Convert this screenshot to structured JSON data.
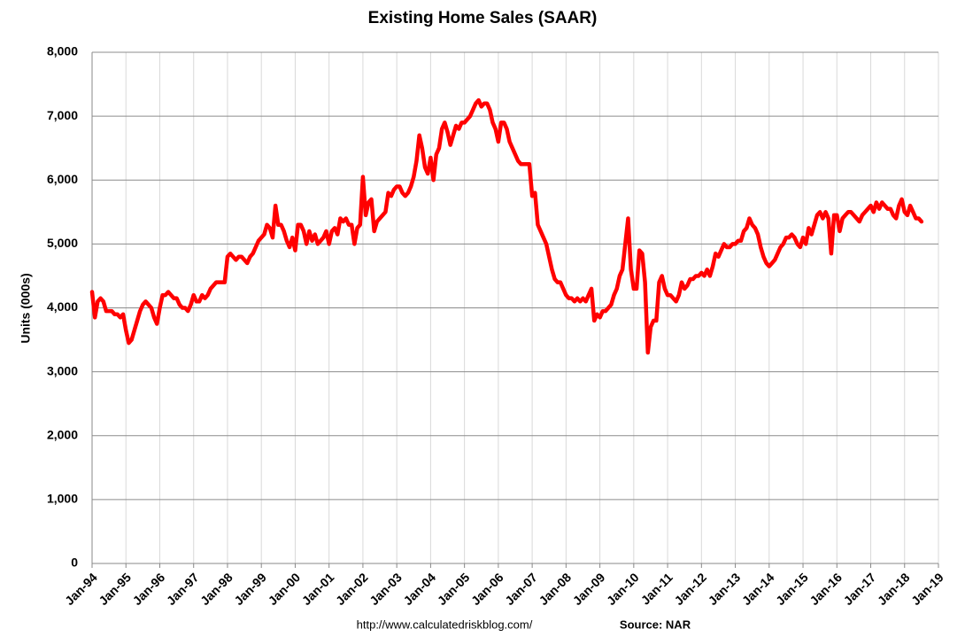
{
  "chart_data": {
    "type": "line",
    "title": "Existing Home Sales (SAAR)",
    "ylabel": "Units (000s)",
    "note": "http://www.calculatedriskblog.com/",
    "source": "Source: NAR",
    "grid": true,
    "xlim": [
      "1994-01",
      "2019-01"
    ],
    "xticks": [
      {
        "value": "1994-01",
        "label": "Jan-94"
      },
      {
        "value": "1995-01",
        "label": "Jan-95"
      },
      {
        "value": "1996-01",
        "label": "Jan-96"
      },
      {
        "value": "1997-01",
        "label": "Jan-97"
      },
      {
        "value": "1998-01",
        "label": "Jan-98"
      },
      {
        "value": "1999-01",
        "label": "Jan-99"
      },
      {
        "value": "2000-01",
        "label": "Jan-00"
      },
      {
        "value": "2001-01",
        "label": "Jan-01"
      },
      {
        "value": "2002-01",
        "label": "Jan-02"
      },
      {
        "value": "2003-01",
        "label": "Jan-03"
      },
      {
        "value": "2004-01",
        "label": "Jan-04"
      },
      {
        "value": "2005-01",
        "label": "Jan-05"
      },
      {
        "value": "2006-01",
        "label": "Jan-06"
      },
      {
        "value": "2007-01",
        "label": "Jan-07"
      },
      {
        "value": "2008-01",
        "label": "Jan-08"
      },
      {
        "value": "2009-01",
        "label": "Jan-09"
      },
      {
        "value": "2010-01",
        "label": "Jan-10"
      },
      {
        "value": "2011-01",
        "label": "Jan-11"
      },
      {
        "value": "2012-01",
        "label": "Jan-12"
      },
      {
        "value": "2013-01",
        "label": "Jan-13"
      },
      {
        "value": "2014-01",
        "label": "Jan-14"
      },
      {
        "value": "2015-01",
        "label": "Jan-15"
      },
      {
        "value": "2016-01",
        "label": "Jan-16"
      },
      {
        "value": "2017-01",
        "label": "Jan-17"
      },
      {
        "value": "2018-01",
        "label": "Jan-18"
      },
      {
        "value": "2019-01",
        "label": "Jan-19"
      }
    ],
    "ylim": [
      0,
      8000
    ],
    "yticks": [
      0,
      {
        "value": 1000,
        "label": "1,000"
      },
      {
        "value": 2000,
        "label": "2,000"
      },
      {
        "value": 3000,
        "label": "3,000"
      },
      {
        "value": 4000,
        "label": "4,000"
      },
      {
        "value": 5000,
        "label": "5,000"
      },
      {
        "value": 6000,
        "label": "6,000"
      },
      {
        "value": 7000,
        "label": "7,000"
      },
      {
        "value": 8000,
        "label": "8,000"
      }
    ],
    "x": [
      "1994-01",
      "1994-02",
      "1994-03",
      "1994-04",
      "1994-05",
      "1994-06",
      "1994-07",
      "1994-08",
      "1994-09",
      "1994-10",
      "1994-11",
      "1994-12",
      "1995-01",
      "1995-02",
      "1995-03",
      "1995-04",
      "1995-05",
      "1995-06",
      "1995-07",
      "1995-08",
      "1995-09",
      "1995-10",
      "1995-11",
      "1995-12",
      "1996-01",
      "1996-02",
      "1996-03",
      "1996-04",
      "1996-05",
      "1996-06",
      "1996-07",
      "1996-08",
      "1996-09",
      "1996-10",
      "1996-11",
      "1996-12",
      "1997-01",
      "1997-02",
      "1997-03",
      "1997-04",
      "1997-05",
      "1997-06",
      "1997-07",
      "1997-08",
      "1997-09",
      "1997-10",
      "1997-11",
      "1997-12",
      "1998-01",
      "1998-02",
      "1998-03",
      "1998-04",
      "1998-05",
      "1998-06",
      "1998-07",
      "1998-08",
      "1998-09",
      "1998-10",
      "1998-11",
      "1998-12",
      "1999-01",
      "1999-02",
      "1999-03",
      "1999-04",
      "1999-05",
      "1999-06",
      "1999-07",
      "1999-08",
      "1999-09",
      "1999-10",
      "1999-11",
      "1999-12",
      "2000-01",
      "2000-02",
      "2000-03",
      "2000-04",
      "2000-05",
      "2000-06",
      "2000-07",
      "2000-08",
      "2000-09",
      "2000-10",
      "2000-11",
      "2000-12",
      "2001-01",
      "2001-02",
      "2001-03",
      "2001-04",
      "2001-05",
      "2001-06",
      "2001-07",
      "2001-08",
      "2001-09",
      "2001-10",
      "2001-11",
      "2001-12",
      "2002-01",
      "2002-02",
      "2002-03",
      "2002-04",
      "2002-05",
      "2002-06",
      "2002-07",
      "2002-08",
      "2002-09",
      "2002-10",
      "2002-11",
      "2002-12",
      "2003-01",
      "2003-02",
      "2003-03",
      "2003-04",
      "2003-05",
      "2003-06",
      "2003-07",
      "2003-08",
      "2003-09",
      "2003-10",
      "2003-11",
      "2003-12",
      "2004-01",
      "2004-02",
      "2004-03",
      "2004-04",
      "2004-05",
      "2004-06",
      "2004-07",
      "2004-08",
      "2004-09",
      "2004-10",
      "2004-11",
      "2004-12",
      "2005-01",
      "2005-02",
      "2005-03",
      "2005-04",
      "2005-05",
      "2005-06",
      "2005-07",
      "2005-08",
      "2005-09",
      "2005-10",
      "2005-11",
      "2005-12",
      "2006-01",
      "2006-02",
      "2006-03",
      "2006-04",
      "2006-05",
      "2006-06",
      "2006-07",
      "2006-08",
      "2006-09",
      "2006-10",
      "2006-11",
      "2006-12",
      "2007-01",
      "2007-02",
      "2007-03",
      "2007-04",
      "2007-05",
      "2007-06",
      "2007-07",
      "2007-08",
      "2007-09",
      "2007-10",
      "2007-11",
      "2007-12",
      "2008-01",
      "2008-02",
      "2008-03",
      "2008-04",
      "2008-05",
      "2008-06",
      "2008-07",
      "2008-08",
      "2008-09",
      "2008-10",
      "2008-11",
      "2008-12",
      "2009-01",
      "2009-02",
      "2009-03",
      "2009-04",
      "2009-05",
      "2009-06",
      "2009-07",
      "2009-08",
      "2009-09",
      "2009-10",
      "2009-11",
      "2009-12",
      "2010-01",
      "2010-02",
      "2010-03",
      "2010-04",
      "2010-05",
      "2010-06",
      "2010-07",
      "2010-08",
      "2010-09",
      "2010-10",
      "2010-11",
      "2010-12",
      "2011-01",
      "2011-02",
      "2011-03",
      "2011-04",
      "2011-05",
      "2011-06",
      "2011-07",
      "2011-08",
      "2011-09",
      "2011-10",
      "2011-11",
      "2011-12",
      "2012-01",
      "2012-02",
      "2012-03",
      "2012-04",
      "2012-05",
      "2012-06",
      "2012-07",
      "2012-08",
      "2012-09",
      "2012-10",
      "2012-11",
      "2012-12",
      "2013-01",
      "2013-02",
      "2013-03",
      "2013-04",
      "2013-05",
      "2013-06",
      "2013-07",
      "2013-08",
      "2013-09",
      "2013-10",
      "2013-11",
      "2013-12",
      "2014-01",
      "2014-02",
      "2014-03",
      "2014-04",
      "2014-05",
      "2014-06",
      "2014-07",
      "2014-08",
      "2014-09",
      "2014-10",
      "2014-11",
      "2014-12",
      "2015-01",
      "2015-02",
      "2015-03",
      "2015-04",
      "2015-05",
      "2015-06",
      "2015-07",
      "2015-08",
      "2015-09",
      "2015-10",
      "2015-11",
      "2015-12",
      "2016-01",
      "2016-02",
      "2016-03",
      "2016-04",
      "2016-05",
      "2016-06",
      "2016-07",
      "2016-08",
      "2016-09",
      "2016-10",
      "2016-11",
      "2016-12",
      "2017-01",
      "2017-02",
      "2017-03",
      "2017-04",
      "2017-05",
      "2017-06",
      "2017-07",
      "2017-08",
      "2017-09",
      "2017-10",
      "2017-11",
      "2017-12",
      "2018-01",
      "2018-02",
      "2018-03",
      "2018-04",
      "2018-05",
      "2018-06",
      "2018-07"
    ],
    "series": [
      {
        "color": "#ff0000",
        "values": [
          4250,
          3850,
          4100,
          4150,
          4100,
          3950,
          3950,
          3950,
          3900,
          3900,
          3850,
          3900,
          3650,
          3450,
          3500,
          3650,
          3800,
          3950,
          4050,
          4100,
          4050,
          4000,
          3850,
          3750,
          4000,
          4200,
          4200,
          4250,
          4200,
          4150,
          4150,
          4050,
          4000,
          4000,
          3950,
          4050,
          4200,
          4100,
          4100,
          4200,
          4150,
          4200,
          4300,
          4350,
          4400,
          4400,
          4400,
          4400,
          4800,
          4850,
          4800,
          4750,
          4800,
          4800,
          4750,
          4700,
          4800,
          4850,
          4950,
          5050,
          5100,
          5150,
          5300,
          5250,
          5100,
          5600,
          5300,
          5300,
          5200,
          5050,
          4950,
          5100,
          4900,
          5300,
          5300,
          5200,
          5000,
          5200,
          5050,
          5150,
          5000,
          5050,
          5100,
          5200,
          5000,
          5200,
          5250,
          5150,
          5400,
          5350,
          5400,
          5300,
          5300,
          5000,
          5250,
          5300,
          6050,
          5450,
          5650,
          5700,
          5200,
          5350,
          5400,
          5450,
          5500,
          5800,
          5750,
          5850,
          5900,
          5900,
          5800,
          5750,
          5800,
          5900,
          6050,
          6300,
          6700,
          6500,
          6200,
          6100,
          6350,
          6000,
          6400,
          6500,
          6800,
          6900,
          6750,
          6550,
          6700,
          6850,
          6800,
          6900,
          6900,
          6950,
          7000,
          7100,
          7200,
          7250,
          7150,
          7200,
          7200,
          7100,
          6900,
          6800,
          6600,
          6900,
          6900,
          6800,
          6600,
          6500,
          6400,
          6300,
          6250,
          6250,
          6250,
          6250,
          5750,
          5800,
          5300,
          5200,
          5100,
          5000,
          4800,
          4600,
          4450,
          4400,
          4400,
          4300,
          4200,
          4150,
          4150,
          4100,
          4150,
          4100,
          4150,
          4100,
          4200,
          4300,
          3800,
          3900,
          3850,
          3950,
          3950,
          4000,
          4050,
          4200,
          4300,
          4500,
          4600,
          5000,
          5400,
          4600,
          4300,
          4300,
          4900,
          4850,
          4400,
          3300,
          3700,
          3800,
          3800,
          4400,
          4500,
          4300,
          4200,
          4200,
          4150,
          4100,
          4200,
          4400,
          4300,
          4350,
          4450,
          4450,
          4500,
          4500,
          4550,
          4500,
          4600,
          4500,
          4650,
          4850,
          4800,
          4900,
          5000,
          4950,
          4950,
          5000,
          5000,
          5050,
          5050,
          5200,
          5250,
          5400,
          5300,
          5250,
          5150,
          4950,
          4800,
          4700,
          4650,
          4700,
          4750,
          4850,
          4950,
          5000,
          5100,
          5100,
          5150,
          5100,
          5000,
          4950,
          5100,
          5000,
          5250,
          5150,
          5300,
          5450,
          5500,
          5400,
          5500,
          5400,
          4850,
          5450,
          5450,
          5200,
          5400,
          5450,
          5500,
          5500,
          5450,
          5400,
          5350,
          5450,
          5500,
          5550,
          5600,
          5500,
          5650,
          5550,
          5650,
          5600,
          5550,
          5550,
          5450,
          5400,
          5600,
          5700,
          5500,
          5450,
          5600,
          5500,
          5400,
          5400,
          5350
        ]
      }
    ]
  }
}
